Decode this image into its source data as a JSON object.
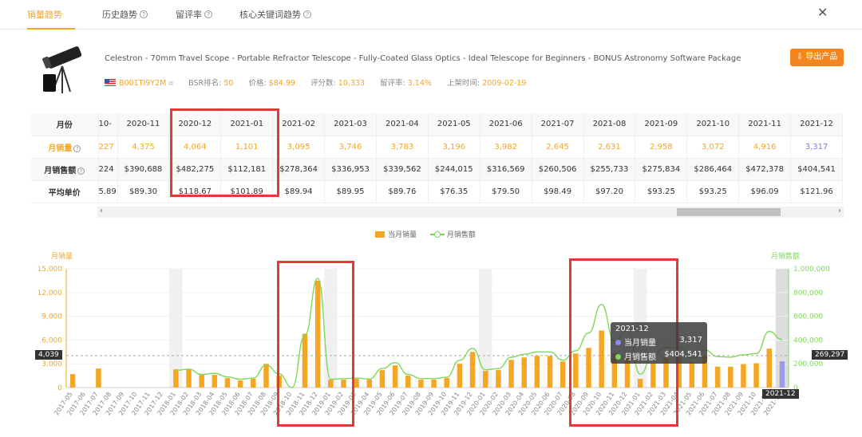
{
  "tabs": [
    {
      "label": "销量趋势"
    },
    {
      "label": "历史趋势"
    },
    {
      "label": "留评率"
    },
    {
      "label": "核心关键词趋势"
    }
  ],
  "product": {
    "title": "Celestron - 70mm Travel Scope - Portable Refractor Telescope - Fully-Coated Glass Optics - Ideal Telescope for Beginners - BONUS Astronomy Software Package",
    "asin": "B001TI9Y2M",
    "bsr_label": "BSR排名:",
    "bsr": "50",
    "price_label": "价格:",
    "price": "$84.99",
    "rating_label": "评分数:",
    "rating_count": "10,333",
    "review_rate_label": "留评率:",
    "review_rate": "3.14%",
    "listed_label": "上架时间:",
    "listed": "2009-02-19",
    "export_label": "导出产品"
  },
  "table": {
    "row_labels": [
      "月份",
      "月销量",
      "月销售额",
      "平均单价"
    ],
    "months": [
      "-10",
      "2020-11",
      "2020-12",
      "2021-01",
      "2021-02",
      "2021-03",
      "2021-04",
      "2021-05",
      "2021-06",
      "2021-07",
      "2021-08",
      "2021-09",
      "2021-10",
      "2021-11",
      "2021-12"
    ],
    "units": [
      "227",
      "4,375",
      "4,064",
      "1,101",
      "3,095",
      "3,746",
      "3,783",
      "3,196",
      "3,982",
      "2,645",
      "2,631",
      "2,958",
      "3,072",
      "4,916",
      "3,317"
    ],
    "revenue": [
      "224",
      "$390,688",
      "$482,275",
      "$112,181",
      "$278,364",
      "$336,953",
      "$339,562",
      "$244,015",
      "$316,569",
      "$260,506",
      "$255,733",
      "$275,834",
      "$286,464",
      "$472,378",
      "$404,541"
    ],
    "avg_price": [
      "5.89",
      "$89.30",
      "$118.67",
      "$101.89",
      "$89.94",
      "$89.95",
      "$89.76",
      "$76.35",
      "$79.50",
      "$98.49",
      "$97.20",
      "$93.25",
      "$93.25",
      "$96.09",
      "$121.96"
    ]
  },
  "legend": {
    "units": "当月销量",
    "revenue": "月销售额"
  },
  "chart_data": {
    "type": "bar",
    "y_left_label": "月销量",
    "y_right_label": "月销售额",
    "y_left_ticks": [
      "15,000",
      "12,000",
      "9,000",
      "6,000",
      "3,000",
      "0"
    ],
    "y_right_ticks": [
      "1,000,000",
      "800,000",
      "600,000",
      "400,000",
      "200,000",
      "0"
    ],
    "ylim_left": [
      0,
      15000
    ],
    "ylim_right": [
      0,
      1000000
    ],
    "categories": [
      "2017-05",
      "2017-06",
      "2017-07",
      "2017-08",
      "2017-09",
      "2017-10",
      "2017-11",
      "2017-12",
      "2018-01",
      "2018-02",
      "2018-03",
      "2018-04",
      "2018-05",
      "2018-06",
      "2018-07",
      "2018-08",
      "2018-09",
      "2018-10",
      "2018-11",
      "2018-12",
      "2019-01",
      "2019-02",
      "2019-03",
      "2019-04",
      "2019-05",
      "2019-06",
      "2019-07",
      "2019-08",
      "2019-09",
      "2019-10",
      "2019-11",
      "2019-12",
      "2020-01",
      "2020-02",
      "2020-03",
      "2020-04",
      "2020-05",
      "2020-06",
      "2020-07",
      "2020-08",
      "2020-09",
      "2020-10",
      "2020-11",
      "2020-12",
      "2021-01",
      "2021-02",
      "2021-03",
      "2021-04",
      "2021-05",
      "2021-06",
      "2021-07",
      "2021-08",
      "2021-09",
      "2021-10",
      "2021-11",
      "2021-12"
    ],
    "series": [
      {
        "name": "当月销量",
        "values": [
          1700,
          0,
          2400,
          0,
          0,
          0,
          0,
          0,
          2300,
          2300,
          1600,
          1600,
          1200,
          900,
          1100,
          3000,
          1500,
          0,
          6800,
          13500,
          1000,
          1000,
          1100,
          1000,
          2200,
          2800,
          1500,
          1000,
          1000,
          1200,
          3000,
          4500,
          2100,
          2200,
          3500,
          3800,
          4000,
          4000,
          3300,
          4300,
          5000,
          7200,
          4375,
          4064,
          1101,
          3095,
          3746,
          3783,
          3196,
          3982,
          2645,
          2631,
          2958,
          3072,
          4916,
          3317
        ]
      },
      {
        "name": "月销售额",
        "values": [
          null,
          null,
          null,
          null,
          null,
          null,
          null,
          null,
          145000,
          155000,
          110000,
          120000,
          90000,
          70000,
          80000,
          190000,
          115000,
          0,
          440000,
          920000,
          70000,
          75000,
          80000,
          72000,
          160000,
          210000,
          110000,
          75000,
          75000,
          88000,
          230000,
          330000,
          150000,
          160000,
          255000,
          280000,
          300000,
          300000,
          230000,
          310000,
          460000,
          700000,
          390688,
          482275,
          112181,
          278364,
          336953,
          339562,
          244015,
          316569,
          260506,
          255733,
          275834,
          286464,
          472378,
          404541
        ]
      }
    ],
    "shaded_months": [
      "2018-01",
      "2019-01",
      "2020-01",
      "2021-01",
      "2021-12"
    ],
    "crosshair_left": "4,039",
    "crosshair_right": "269,297",
    "crosshair_x": "2021-12"
  },
  "tooltip": {
    "title": "2021-12",
    "units_label": "当月销量",
    "units_value": "3,317",
    "revenue_label": "月销售额",
    "revenue_value": "$404,541"
  }
}
